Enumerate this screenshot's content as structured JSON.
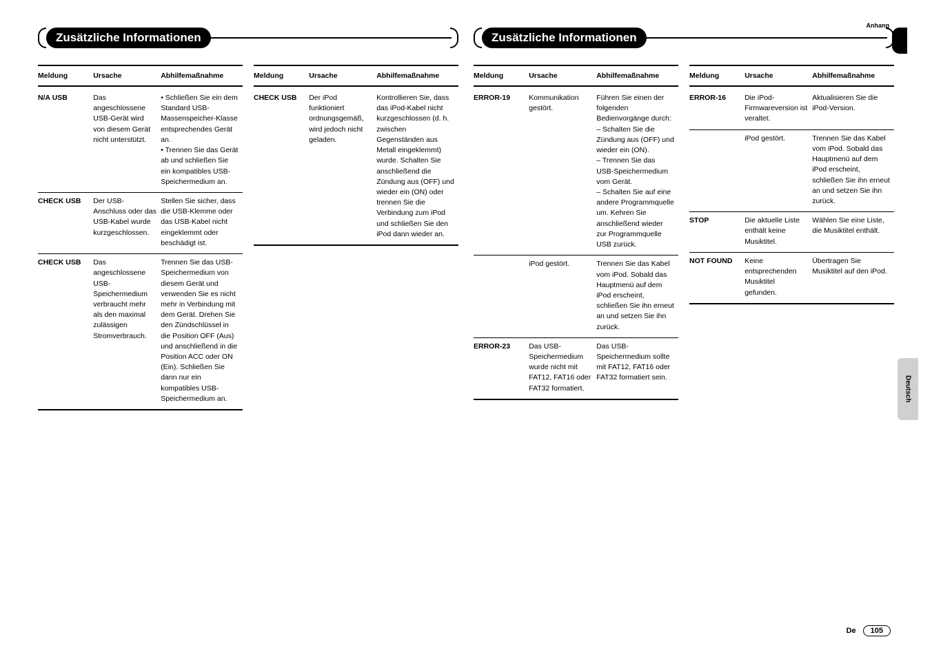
{
  "topLabel": "Anhang",
  "headerLeft": "Zusätzliche Informationen",
  "headerRight": "Zusätzliche Informationen",
  "sideTab": "Deutsch",
  "footerLang": "De",
  "pageNumber": "105",
  "headers": {
    "c1": "Meldung",
    "c2": "Ursache",
    "c3": "Abhilfemaßnahme"
  },
  "colA": [
    {
      "m": "N/A USB",
      "u": "Das angeschlossene USB-Gerät wird von diesem Gerät nicht unterstützt.",
      "a": "• Schließen Sie ein dem Standard USB-Massenspeicher-Klasse entsprechendes Gerät an.\n• Trennen Sie das Gerät ab und schließen Sie ein kompatibles USB-Speichermedium an."
    },
    {
      "m": "CHECK USB",
      "u": "Der USB-Anschluss oder das USB-Kabel wurde kurzgeschlossen.",
      "a": "Stellen Sie sicher, dass die USB-Klemme oder das USB-Kabel nicht eingeklemmt oder beschädigt ist."
    },
    {
      "m": "CHECK USB",
      "u": "Das angeschlossene USB-Speichermedium verbraucht mehr als den maximal zulässigen Stromverbrauch.",
      "a": "Trennen Sie das USB-Speichermedium von diesem Gerät und verwenden Sie es nicht mehr in Verbindung mit dem Gerät. Drehen Sie den Zündschlüssel in die Position OFF (Aus) und anschließend in die Position ACC oder ON (Ein). Schließen Sie dann nur ein kompatibles USB-Speichermedium an."
    }
  ],
  "colB": [
    {
      "m": "CHECK USB",
      "u": "Der iPod funktioniert ordnungsgemäß, wird jedoch nicht geladen.",
      "a": "Kontrollieren Sie, dass das iPod-Kabel nicht kurzgeschlossen (d. h. zwischen Gegenständen aus Metall eingeklemmt) wurde. Schalten Sie anschließend die Zündung aus (OFF) und wieder ein (ON) oder trennen Sie die Verbindung zum iPod und schließen Sie den iPod dann wieder an."
    }
  ],
  "colC": [
    {
      "m": "ERROR-19",
      "u": "Kommunikation gestört.",
      "a": "Führen Sie einen der folgenden Bedienvorgänge durch:\n– Schalten Sie die Zündung aus (OFF) und wieder ein (ON).\n– Trennen Sie das USB-Speichermedium vom Gerät.\n– Schalten Sie auf eine andere Programmquelle um. Kehren Sie anschließend wieder zur Programmquelle USB zurück."
    },
    {
      "m": "",
      "u": "iPod gestört.",
      "a": "Trennen Sie das Kabel vom iPod. Sobald das Hauptmenü auf dem iPod erscheint, schließen Sie ihn erneut an und setzen Sie ihn zurück."
    },
    {
      "m": "ERROR-23",
      "u": "Das USB-Speichermedium wurde nicht mit FAT12, FAT16 oder FAT32 formatiert.",
      "a": "Das USB-Speichermedium sollte mit FAT12, FAT16 oder FAT32 formatiert sein."
    }
  ],
  "colD": [
    {
      "m": "ERROR-16",
      "u": "Die iPod-Firmwareversion ist veraltet.",
      "a": "Aktualisieren Sie die iPod-Version."
    },
    {
      "m": "",
      "u": "iPod gestört.",
      "a": "Trennen Sie das Kabel vom iPod. Sobald das Hauptmenü auf dem iPod erscheint, schließen Sie ihn erneut an und setzen Sie ihn zurück."
    },
    {
      "m": "STOP",
      "u": "Die aktuelle Liste enthält keine Musiktitel.",
      "a": "Wählen Sie eine Liste, die Musiktitel enthält."
    },
    {
      "m": "NOT FOUND",
      "u": "Keine entsprechenden Musiktitel gefunden.",
      "a": "Übertragen Sie Musiktitel auf den iPod."
    }
  ]
}
